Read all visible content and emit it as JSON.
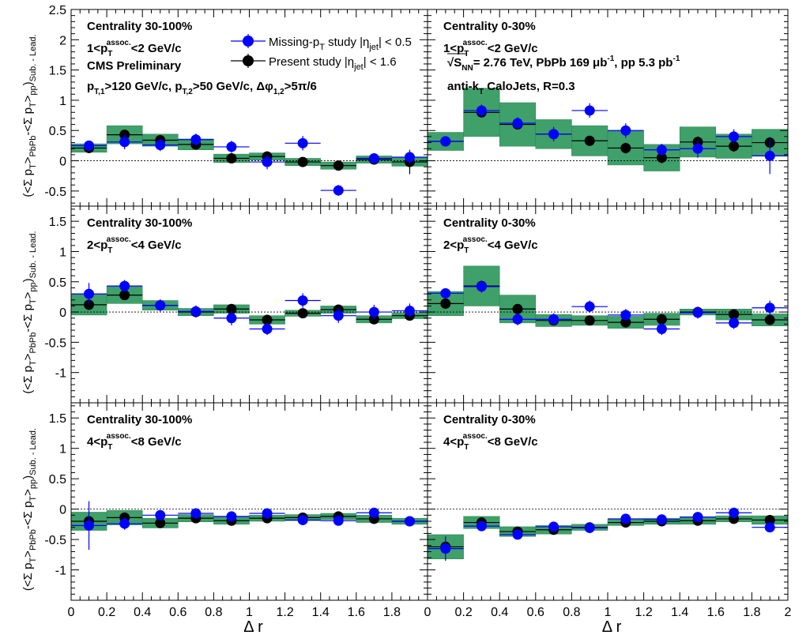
{
  "legend": {
    "blue_label": "Missing-p",
    "blue_label_sub": "T",
    "blue_label_rest": " study |η",
    "blue_label_sub2": "jet",
    "blue_label_end": "| < 0.5",
    "black_label": "Present study |η",
    "black_label_sub": "jet",
    "black_label_end": "| < 1.6"
  },
  "annotations": {
    "cms": "CMS Preliminary",
    "cuts": "p",
    "energy": "= 2.76 TeV,  PbPb 169  μb",
    "pp": ",  pp 5.3 pb",
    "algo": "anti-k",
    "algo_rest": " CaloJets,  R=0.3"
  },
  "colors": {
    "blue": "#0000ff",
    "black": "#000000",
    "band": "#3fa06a",
    "band_stroke": "#2d7d50"
  },
  "chart_data": [
    {
      "type": "scatter",
      "panel": "row1-left",
      "centrality": "Centrality 30-100%",
      "pt_range": "1<p_T^assoc.<2 GeV/c",
      "xlabel": "",
      "ylabel": "(<Σ p_T>_PbPb-<Σ p_T>_pp)_Sub. - Lead.",
      "xlim": [
        0,
        2
      ],
      "ylim": [
        -0.75,
        2.5
      ],
      "yticks": [
        -0.5,
        0,
        0.5,
        1,
        1.5,
        2,
        2.5
      ],
      "x": [
        0.1,
        0.3,
        0.5,
        0.7,
        0.9,
        1.1,
        1.3,
        1.5,
        1.7,
        1.9
      ],
      "series": [
        {
          "name": "Missing-pT study |eta_jet| < 0.5",
          "color": "blue",
          "values": [
            0.25,
            0.31,
            0.26,
            0.35,
            0.23,
            -0.02,
            0.29,
            -0.49,
            0.04,
            0.06
          ],
          "errors": [
            0.07,
            0.12,
            0.1,
            0.1,
            0.1,
            0.12,
            0.12,
            0.09,
            0.08,
            0.12
          ]
        },
        {
          "name": "Present study |eta_jet| < 1.6",
          "color": "black",
          "values": [
            0.21,
            0.43,
            0.34,
            0.27,
            0.04,
            0.07,
            -0.02,
            -0.08,
            0.02,
            -0.02
          ],
          "errors": [
            0.05,
            0.07,
            0.07,
            0.07,
            0.06,
            0.07,
            0.07,
            0.07,
            0.07,
            0.2
          ],
          "sys": [
            0.07,
            0.15,
            0.1,
            0.09,
            0.07,
            0.06,
            0.06,
            0.06,
            0.06,
            0.07
          ]
        }
      ]
    },
    {
      "type": "scatter",
      "panel": "row1-right",
      "centrality": "Centrality 0-30%",
      "pt_range": "1<p_T^assoc.<2 GeV/c",
      "xlim": [
        0,
        2
      ],
      "ylim": [
        -0.75,
        2.5
      ],
      "x": [
        0.1,
        0.3,
        0.5,
        0.7,
        0.9,
        1.1,
        1.3,
        1.5,
        1.7,
        1.9
      ],
      "series": [
        {
          "name": "Missing-pT study |eta_jet| < 0.5",
          "color": "blue",
          "values": [
            0.32,
            0.83,
            0.62,
            0.44,
            0.83,
            0.5,
            0.18,
            0.2,
            0.4,
            0.08
          ],
          "errors": [
            0.06,
            0.1,
            0.1,
            0.12,
            0.12,
            0.12,
            0.1,
            0.15,
            0.12,
            0.3
          ]
        },
        {
          "name": "Present study |eta_jet| < 1.6",
          "color": "black",
          "values": [
            0.32,
            0.8,
            0.6,
            0.44,
            0.33,
            0.21,
            0.05,
            0.31,
            0.24,
            0.3
          ],
          "errors": [
            0.05,
            0.07,
            0.08,
            0.08,
            0.08,
            0.09,
            0.09,
            0.09,
            0.09,
            0.09
          ],
          "sys": [
            0.15,
            0.4,
            0.36,
            0.24,
            0.25,
            0.28,
            0.22,
            0.25,
            0.2,
            0.22
          ]
        }
      ]
    },
    {
      "type": "scatter",
      "panel": "row2-left",
      "centrality": "Centrality 30-100%",
      "pt_range": "2<p_T^assoc.<4 GeV/c",
      "xlim": [
        0,
        2
      ],
      "ylim": [
        -1.5,
        1.75
      ],
      "yticks": [
        -1,
        -0.5,
        0,
        0.5,
        1,
        1.5
      ],
      "x": [
        0.1,
        0.3,
        0.5,
        0.7,
        0.9,
        1.1,
        1.3,
        1.5,
        1.7,
        1.9
      ],
      "series": [
        {
          "name": "Missing-pT study |eta_jet| < 0.5",
          "color": "blue",
          "values": [
            0.3,
            0.43,
            0.11,
            0.01,
            -0.1,
            -0.28,
            0.19,
            -0.06,
            0.0,
            0.02
          ],
          "errors": [
            0.18,
            0.1,
            0.1,
            0.1,
            0.12,
            0.1,
            0.12,
            0.12,
            0.12,
            0.12
          ]
        },
        {
          "name": "Present study |eta_jet| < 1.6",
          "color": "black",
          "values": [
            0.12,
            0.28,
            0.11,
            0.0,
            0.05,
            -0.13,
            -0.02,
            0.04,
            -0.12,
            -0.06
          ],
          "errors": [
            0.05,
            0.06,
            0.06,
            0.06,
            0.06,
            0.06,
            0.06,
            0.06,
            0.06,
            0.06
          ],
          "sys": [
            0.17,
            0.14,
            0.08,
            0.06,
            0.07,
            0.07,
            0.05,
            0.06,
            0.06,
            0.05
          ]
        }
      ]
    },
    {
      "type": "scatter",
      "panel": "row2-right",
      "centrality": "Centrality 0-30%",
      "pt_range": "2<p_T^assoc.<4 GeV/c",
      "xlim": [
        0,
        2
      ],
      "ylim": [
        -1.5,
        1.75
      ],
      "x": [
        0.1,
        0.3,
        0.5,
        0.7,
        0.9,
        1.1,
        1.3,
        1.5,
        1.7,
        1.9
      ],
      "series": [
        {
          "name": "Missing-pT study |eta_jet| < 0.5",
          "color": "blue",
          "values": [
            0.31,
            0.42,
            -0.12,
            -0.12,
            0.09,
            -0.05,
            -0.28,
            -0.01,
            -0.18,
            0.07
          ],
          "errors": [
            0.08,
            0.1,
            0.1,
            0.1,
            0.1,
            0.1,
            0.1,
            0.1,
            0.1,
            0.12
          ]
        },
        {
          "name": "Present study |eta_jet| < 1.6",
          "color": "black",
          "values": [
            0.14,
            0.43,
            0.05,
            -0.14,
            -0.14,
            -0.17,
            -0.12,
            0.0,
            -0.04,
            -0.13
          ],
          "errors": [
            0.05,
            0.07,
            0.07,
            0.07,
            0.07,
            0.07,
            0.07,
            0.07,
            0.07,
            0.07
          ],
          "sys": [
            0.2,
            0.33,
            0.23,
            0.1,
            0.08,
            0.1,
            0.1,
            0.05,
            0.09,
            0.1
          ]
        }
      ]
    },
    {
      "type": "scatter",
      "panel": "row3-left",
      "centrality": "Centrality 30-100%",
      "pt_range": "4<p_T^assoc.<8 GeV/c",
      "xlabel": "Δ r",
      "xlim": [
        0,
        2
      ],
      "ylim": [
        -1.5,
        1.75
      ],
      "yticks": [
        -1,
        -0.5,
        0,
        0.5,
        1,
        1.5
      ],
      "xticks": [
        0,
        0.2,
        0.4,
        0.6,
        0.8,
        1,
        1.2,
        1.4,
        1.6,
        1.8
      ],
      "x": [
        0.1,
        0.3,
        0.5,
        0.7,
        0.9,
        1.1,
        1.3,
        1.5,
        1.7,
        1.9
      ],
      "series": [
        {
          "name": "Missing-pT study |eta_jet| < 0.5",
          "color": "blue",
          "values": [
            -0.27,
            -0.24,
            -0.1,
            -0.07,
            -0.12,
            -0.07,
            -0.18,
            -0.19,
            -0.06,
            -0.2
          ],
          "errors": [
            0.4,
            0.1,
            0.08,
            0.08,
            0.08,
            0.08,
            0.08,
            0.08,
            0.08,
            0.08
          ]
        },
        {
          "name": "Present study |eta_jet| < 1.6",
          "color": "black",
          "values": [
            -0.2,
            -0.14,
            -0.23,
            -0.15,
            -0.19,
            -0.15,
            -0.14,
            -0.12,
            -0.16,
            -0.2
          ],
          "errors": [
            0.05,
            0.05,
            0.05,
            0.05,
            0.05,
            0.05,
            0.05,
            0.05,
            0.05,
            0.05
          ],
          "sys": [
            0.15,
            0.12,
            0.08,
            0.06,
            0.06,
            0.05,
            0.05,
            0.05,
            0.06,
            0.05
          ]
        }
      ]
    },
    {
      "type": "scatter",
      "panel": "row3-right",
      "centrality": "Centrality 0-30%",
      "pt_range": "4<p_T^assoc.<8 GeV/c",
      "xlabel": "Δ r",
      "xlim": [
        0,
        2
      ],
      "ylim": [
        -1.5,
        1.75
      ],
      "xticks": [
        0,
        0.2,
        0.4,
        0.6,
        0.8,
        1,
        1.2,
        1.4,
        1.6,
        1.8,
        2
      ],
      "x": [
        0.1,
        0.3,
        0.5,
        0.7,
        0.9,
        1.1,
        1.3,
        1.5,
        1.7,
        1.9
      ],
      "series": [
        {
          "name": "Missing-pT study |eta_jet| < 0.5",
          "color": "blue",
          "values": [
            -0.65,
            -0.28,
            -0.42,
            -0.29,
            -0.31,
            -0.16,
            -0.17,
            -0.13,
            -0.06,
            -0.3
          ],
          "errors": [
            0.2,
            0.08,
            0.08,
            0.08,
            0.06,
            0.08,
            0.06,
            0.06,
            0.06,
            0.08
          ]
        },
        {
          "name": "Present study |eta_jet| < 1.6",
          "color": "black",
          "values": [
            -0.62,
            -0.22,
            -0.37,
            -0.34,
            -0.3,
            -0.22,
            -0.2,
            -0.19,
            -0.16,
            -0.18
          ],
          "errors": [
            0.05,
            0.05,
            0.05,
            0.05,
            0.05,
            0.05,
            0.05,
            0.05,
            0.05,
            0.05
          ],
          "sys": [
            0.2,
            0.1,
            0.08,
            0.07,
            0.05,
            0.05,
            0.05,
            0.06,
            0.05,
            0.07
          ]
        }
      ]
    }
  ]
}
